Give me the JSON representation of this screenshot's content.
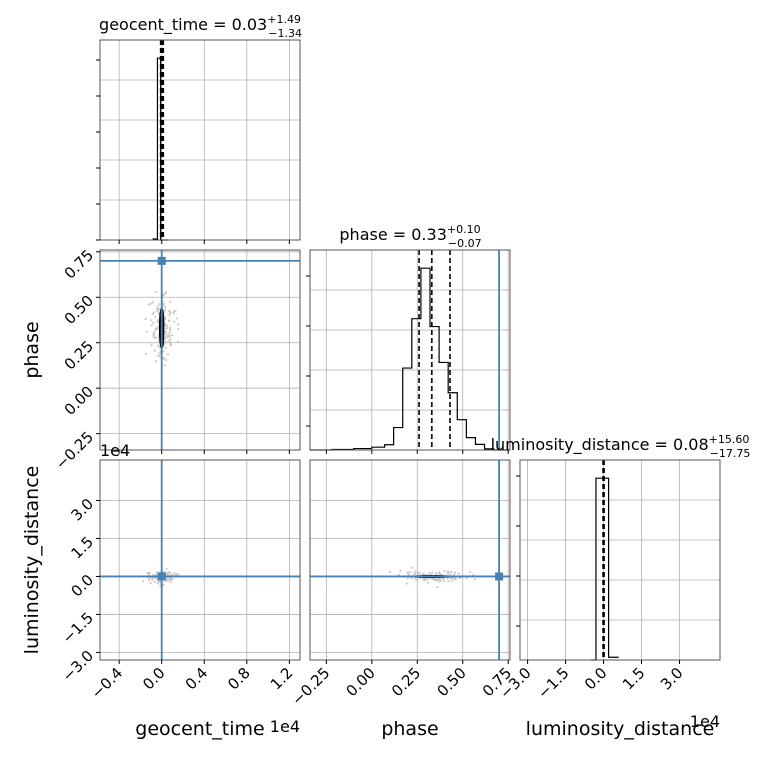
{
  "chart_data": {
    "type": "corner",
    "parameters": [
      "geocent_time",
      "phase",
      "luminosity_distance"
    ],
    "axis_labels": [
      "geocent_time",
      "phase",
      "luminosity_distance"
    ],
    "ranges": {
      "geocent_time": [
        -0.58,
        1.3
      ],
      "phase": [
        -0.34,
        0.76
      ],
      "luminosity_distance": [
        -3.3,
        4.6
      ]
    },
    "scale_notes": {
      "geocent_time": "1e4",
      "luminosity_distance": "1e4"
    },
    "truth": {
      "phase": 0.7,
      "geocent_time": 0.0,
      "luminosity_distance": 0.0
    },
    "truth_color": "#4682b4",
    "ticks": {
      "geocent_time": [
        "−0.4",
        "0.0",
        "0.4",
        "0.8",
        "1.2"
      ],
      "phase": [
        "−0.25",
        "0.00",
        "0.25",
        "0.50",
        "0.75"
      ],
      "luminosity_distance": [
        "−3.0",
        "−1.5",
        "0.0",
        "1.5",
        "3.0"
      ]
    },
    "titles": {
      "geocent_time": {
        "main": "geocent_time = 0.03",
        "plus": "+1.49",
        "minus": "−1.34"
      },
      "phase": {
        "main": "phase = 0.33",
        "plus": "+0.10",
        "minus": "−0.07"
      },
      "luminosity_distance": {
        "main": "luminosity_distance = 0.08",
        "plus": "+15.60",
        "minus": "−17.75"
      }
    },
    "quantiles": {
      "geocent_time": [
        -0.01,
        0.0,
        0.015
      ],
      "phase": [
        0.26,
        0.33,
        0.43
      ],
      "luminosity_distance": [
        -0.02,
        0.0,
        0.02
      ]
    },
    "histograms": {
      "geocent_time": {
        "edges": [
          -0.08,
          -0.04,
          -0.01,
          0.06
        ],
        "counts": [
          1,
          180,
          0
        ]
      },
      "phase": {
        "edges": [
          -0.34,
          -0.22,
          -0.1,
          0.0,
          0.07,
          0.12,
          0.17,
          0.22,
          0.27,
          0.32,
          0.37,
          0.42,
          0.47,
          0.52,
          0.57,
          0.62,
          0.67,
          0.76
        ],
        "counts": [
          0,
          0.5,
          1.3,
          2.5,
          4.7,
          20,
          73,
          117,
          162,
          110,
          78,
          51,
          27,
          11,
          5,
          1,
          0
        ]
      },
      "luminosity_distance": {
        "edges": [
          -0.5,
          -0.3,
          0.2,
          0.6
        ],
        "counts": [
          0,
          200,
          3
        ]
      }
    },
    "grid": true
  }
}
